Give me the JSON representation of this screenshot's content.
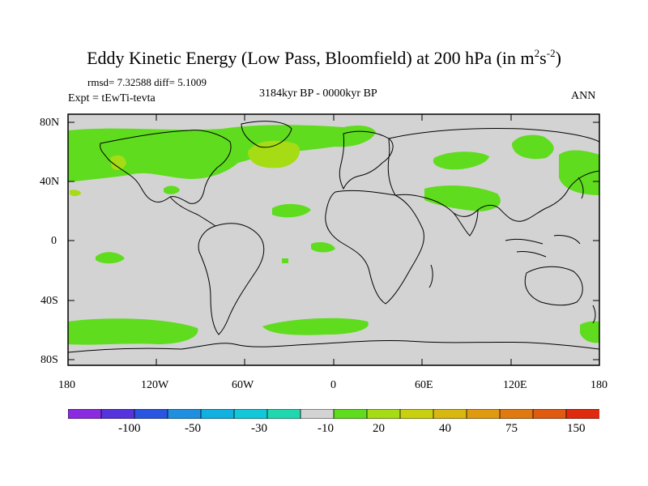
{
  "title_main": "Eddy Kinetic Energy (Low Pass, Bloomfield) at 200 hPa (in m",
  "title_sup1": "2",
  "title_mid": "s",
  "title_sup2": "-2",
  "title_end": ")",
  "stats": "rmsd= 7.32588 diff= 5.1009",
  "experiment": "Expt = tEwTi-tevta",
  "period": "3184kyr BP - 0000kyr BP",
  "season": "ANN",
  "lat_ticks": [
    "80N",
    "40N",
    "0",
    "40S",
    "80S"
  ],
  "lon_ticks": [
    "180",
    "120W",
    "60W",
    "0",
    "60E",
    "120E",
    "180"
  ],
  "colorbar": {
    "labels": [
      "-100",
      "-50",
      "-30",
      "-10",
      "20",
      "40",
      "75",
      "150"
    ],
    "colors": [
      "#8a2be2",
      "#5533dd",
      "#2a55e0",
      "#1f8fe0",
      "#10b0e0",
      "#10c8d8",
      "#20d8b0",
      "#d3d3d3",
      "#5fdc1e",
      "#a6dc14",
      "#c8d010",
      "#d8b810",
      "#e09a10",
      "#e07a10",
      "#e05a10",
      "#e02a10"
    ]
  },
  "map_colors": {
    "background": "#d3d3d3",
    "green": "#5fdc1e",
    "yellowgreen": "#a6dc14",
    "coast": "#000000"
  }
}
